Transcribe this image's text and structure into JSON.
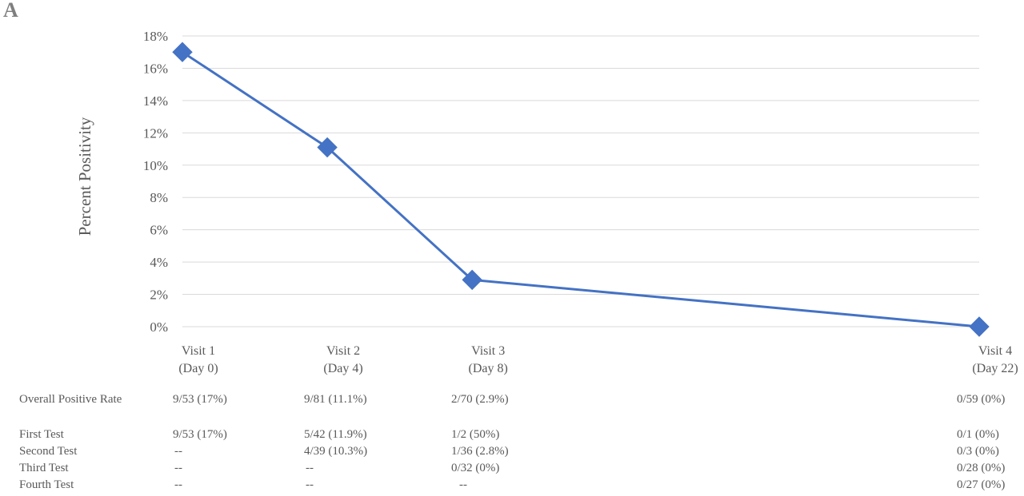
{
  "panel_label": "A",
  "chart_data": {
    "type": "line",
    "ylabel": "Percent Positivity",
    "ylim": [
      0,
      18
    ],
    "yticks": [
      "0%",
      "2%",
      "4%",
      "6%",
      "8%",
      "10%",
      "12%",
      "14%",
      "16%",
      "18%"
    ],
    "y_step": 2,
    "grid": true,
    "categories": [
      {
        "line1": "Visit 1",
        "line2": "(Day 0)"
      },
      {
        "line1": "Visit 2",
        "line2": "(Day 4)"
      },
      {
        "line1": "Visit 3",
        "line2": "(Day 8)"
      },
      {
        "line1": "Visit 4",
        "line2": "(Day 22)"
      }
    ],
    "x_days": [
      0,
      4,
      8,
      22
    ],
    "series": [
      {
        "values": [
          17,
          11.1,
          2.9,
          0
        ],
        "color": "#4472c4",
        "marker": "diamond"
      }
    ]
  },
  "table": {
    "rows": [
      {
        "label": "Overall Positive Rate",
        "cells": [
          "9/53 (17%)",
          "9/81 (11.1%)",
          "2/70 (2.9%)",
          "0/59 (0%)"
        ]
      },
      {
        "label": "First Test",
        "cells": [
          "9/53 (17%)",
          "5/42 (11.9%)",
          "1/2 (50%)",
          "0/1 (0%)"
        ]
      },
      {
        "label": "Second Test",
        "cells": [
          "--",
          "4/39 (10.3%)",
          "1/36 (2.8%)",
          "0/3 (0%)"
        ]
      },
      {
        "label": "Third Test",
        "cells": [
          "--",
          "--",
          "0/32 (0%)",
          "0/28 (0%)"
        ]
      },
      {
        "label": "Fourth Test",
        "cells": [
          "--",
          "--",
          "--",
          "0/27 (0%)"
        ]
      }
    ]
  }
}
